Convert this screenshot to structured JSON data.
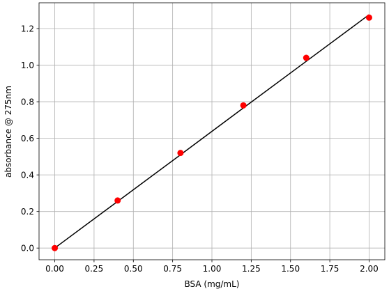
{
  "chart_data": {
    "type": "scatter",
    "xlabel": "BSA (mg/mL)",
    "ylabel": "absorbance @ 275nm",
    "x": [
      0,
      0.4,
      0.8,
      1.2,
      1.6,
      2.0
    ],
    "series": [
      {
        "mode": "line",
        "color": "#000000",
        "values": [
          0,
          0.255,
          0.51,
          0.766,
          1.021,
          1.276
        ]
      },
      {
        "mode": "markers",
        "color": "#ff0000",
        "values": [
          0,
          0.26,
          0.52,
          0.78,
          1.04,
          1.26
        ]
      }
    ],
    "xlim": [
      -0.1,
      2.1
    ],
    "ylim": [
      -0.064,
      1.341
    ],
    "xticks": [
      {
        "value": 0,
        "label": "0.00"
      },
      0.25,
      {
        "value": 0.5,
        "label": "0.50"
      },
      0.75,
      {
        "value": 1,
        "label": "1.00"
      },
      1.25,
      {
        "value": 1.5,
        "label": "1.50"
      },
      1.75,
      {
        "value": 2,
        "label": "2.00"
      }
    ],
    "yticks": [
      {
        "value": 0,
        "label": "0.0"
      },
      0.2,
      0.4,
      0.6,
      0.8,
      {
        "value": 1,
        "label": "1.0"
      },
      1.2
    ],
    "grid": true
  }
}
